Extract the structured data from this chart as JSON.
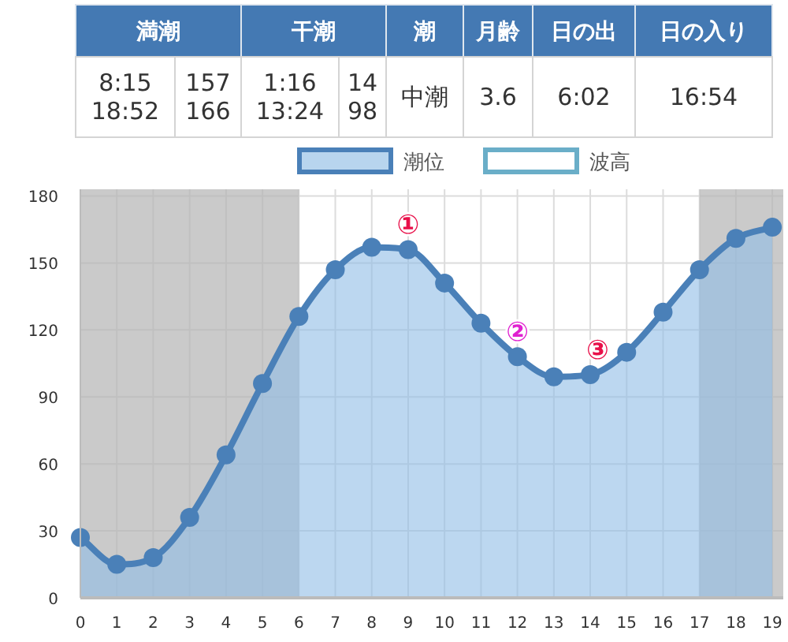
{
  "chart_data": [
    {
      "type": "other",
      "categories": [
        "満潮",
        "干潮",
        "潮",
        "月齢",
        "日の出",
        "日の入り"
      ],
      "annotations": [
        "8:15\n18:52",
        "157\n166",
        "1:16\n13:24",
        "14\n98",
        "中潮",
        "3.6",
        "6:02",
        "16:54"
      ]
    },
    {
      "type": "area",
      "x": [
        0,
        1,
        2,
        3,
        4,
        5,
        6,
        7,
        8,
        9,
        10,
        11,
        12,
        13,
        14,
        15,
        16,
        17,
        18,
        19
      ],
      "series": [
        {
          "name": "潮位",
          "color": "#4a80b8",
          "values": [
            27,
            15,
            18,
            36,
            64,
            96,
            126,
            147,
            157,
            156,
            141,
            123,
            108,
            99,
            100,
            110,
            128,
            147,
            161,
            166
          ]
        },
        {
          "name": "波高",
          "color": "#6aaec8",
          "values": [
            null,
            null,
            null,
            null,
            null,
            null,
            null,
            null,
            null,
            null,
            null,
            null,
            null,
            null,
            null,
            null,
            null,
            null,
            null,
            null
          ]
        }
      ],
      "xlim": [
        0,
        19.3
      ],
      "xticks": [
        0,
        1,
        2,
        3,
        4,
        5,
        6,
        7,
        8,
        9,
        10,
        11,
        12,
        13,
        14,
        15,
        16,
        17,
        18,
        19
      ],
      "ylim": [
        0,
        183
      ],
      "yticks": [
        0,
        30,
        60,
        90,
        120,
        150,
        180
      ],
      "grid": true,
      "legend": "top",
      "marker": "circle",
      "bands": [
        {
          "axis": "x",
          "from": 0,
          "to": 6,
          "color": "#b4b4b4"
        },
        {
          "axis": "x",
          "from": 17,
          "to": 19.3,
          "color": "#b4b4b4"
        }
      ],
      "annotations": [
        {
          "text": "①",
          "x": 9,
          "y": 156
        },
        {
          "text": "②",
          "x": 12,
          "y": 108
        },
        {
          "text": "③",
          "x": 14.2,
          "y": 100
        }
      ]
    }
  ]
}
